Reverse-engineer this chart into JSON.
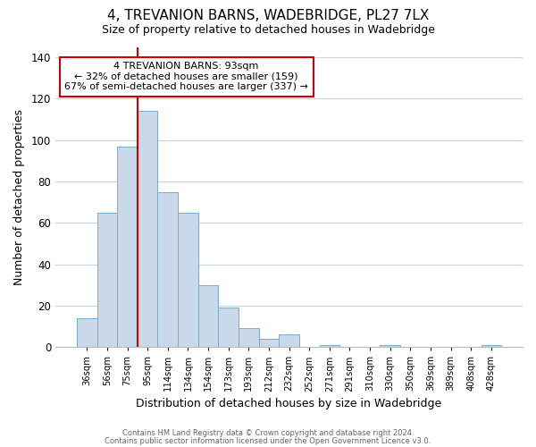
{
  "title": "4, TREVANION BARNS, WADEBRIDGE, PL27 7LX",
  "subtitle": "Size of property relative to detached houses in Wadebridge",
  "xlabel": "Distribution of detached houses by size in Wadebridge",
  "ylabel": "Number of detached properties",
  "bar_labels": [
    "36sqm",
    "56sqm",
    "75sqm",
    "95sqm",
    "114sqm",
    "134sqm",
    "154sqm",
    "173sqm",
    "193sqm",
    "212sqm",
    "232sqm",
    "252sqm",
    "271sqm",
    "291sqm",
    "310sqm",
    "330sqm",
    "350sqm",
    "369sqm",
    "389sqm",
    "408sqm",
    "428sqm"
  ],
  "bar_heights": [
    14,
    65,
    97,
    114,
    75,
    65,
    30,
    19,
    9,
    4,
    6,
    0,
    1,
    0,
    0,
    1,
    0,
    0,
    0,
    0,
    1
  ],
  "bar_color": "#c9d9ea",
  "bar_edge_color": "#7baac8",
  "ylim": [
    0,
    145
  ],
  "yticks": [
    0,
    20,
    40,
    60,
    80,
    100,
    120,
    140
  ],
  "property_line_color": "#cc0000",
  "annotation_title": "4 TREVANION BARNS: 93sqm",
  "annotation_line1": "← 32% of detached houses are smaller (159)",
  "annotation_line2": "67% of semi-detached houses are larger (337) →",
  "footer_line1": "Contains HM Land Registry data © Crown copyright and database right 2024.",
  "footer_line2": "Contains public sector information licensed under the Open Government Licence v3.0.",
  "background_color": "#ffffff",
  "grid_color": "#c8d4de"
}
